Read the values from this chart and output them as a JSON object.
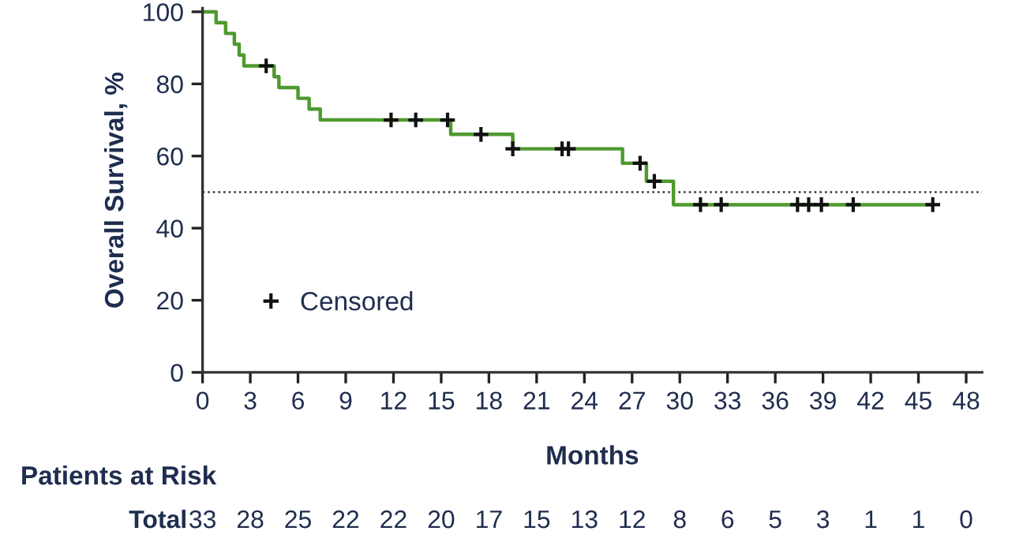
{
  "chart_data": {
    "type": "step",
    "xlabel": "Months",
    "ylabel": "Overall Survival, %",
    "xlim": [
      0,
      49
    ],
    "ylim": [
      0,
      101
    ],
    "xticks": [
      0,
      3,
      6,
      9,
      12,
      15,
      18,
      21,
      24,
      27,
      30,
      33,
      36,
      39,
      42,
      45,
      48
    ],
    "yticks": [
      0,
      20,
      40,
      60,
      80,
      100
    ],
    "series": [
      {
        "color": "#4e9a2e",
        "x": [
          0,
          0.85,
          1.45,
          2.0,
          2.3,
          2.6,
          4.5,
          4.8,
          6.0,
          6.7,
          7.4,
          15.6,
          19.5,
          26.4,
          27.9,
          29.6,
          45.9
        ],
        "values": [
          100,
          97,
          94,
          91,
          88,
          85,
          82,
          79,
          76,
          73,
          70,
          66,
          62,
          58,
          53,
          46.5,
          46.5
        ]
      },
      {
        "type": "scatter",
        "name": "Censored",
        "color": "#111111",
        "marker": "cross",
        "x": [
          4.0,
          11.85,
          13.4,
          15.4,
          17.5,
          19.5,
          22.6,
          23.0,
          27.5,
          28.4,
          31.3,
          32.6,
          37.4,
          38.1,
          38.9,
          40.9,
          45.9
        ],
        "values": [
          85,
          70,
          70,
          70,
          66,
          62,
          62,
          62,
          58,
          53,
          46.5,
          46.5,
          46.5,
          46.5,
          46.5,
          46.5,
          46.5
        ]
      }
    ],
    "ref_lines": [
      {
        "axis": "y",
        "value": 50,
        "line_style": "dotted",
        "color": "#333333"
      }
    ],
    "legend": "bottom left",
    "annotations": [
      "Patients at Risk",
      "Total",
      "33",
      "28",
      "25",
      "22",
      "22",
      "20",
      "17",
      "15",
      "13",
      "12",
      "8",
      "6",
      "5",
      "3",
      "1",
      "1",
      "0"
    ]
  }
}
